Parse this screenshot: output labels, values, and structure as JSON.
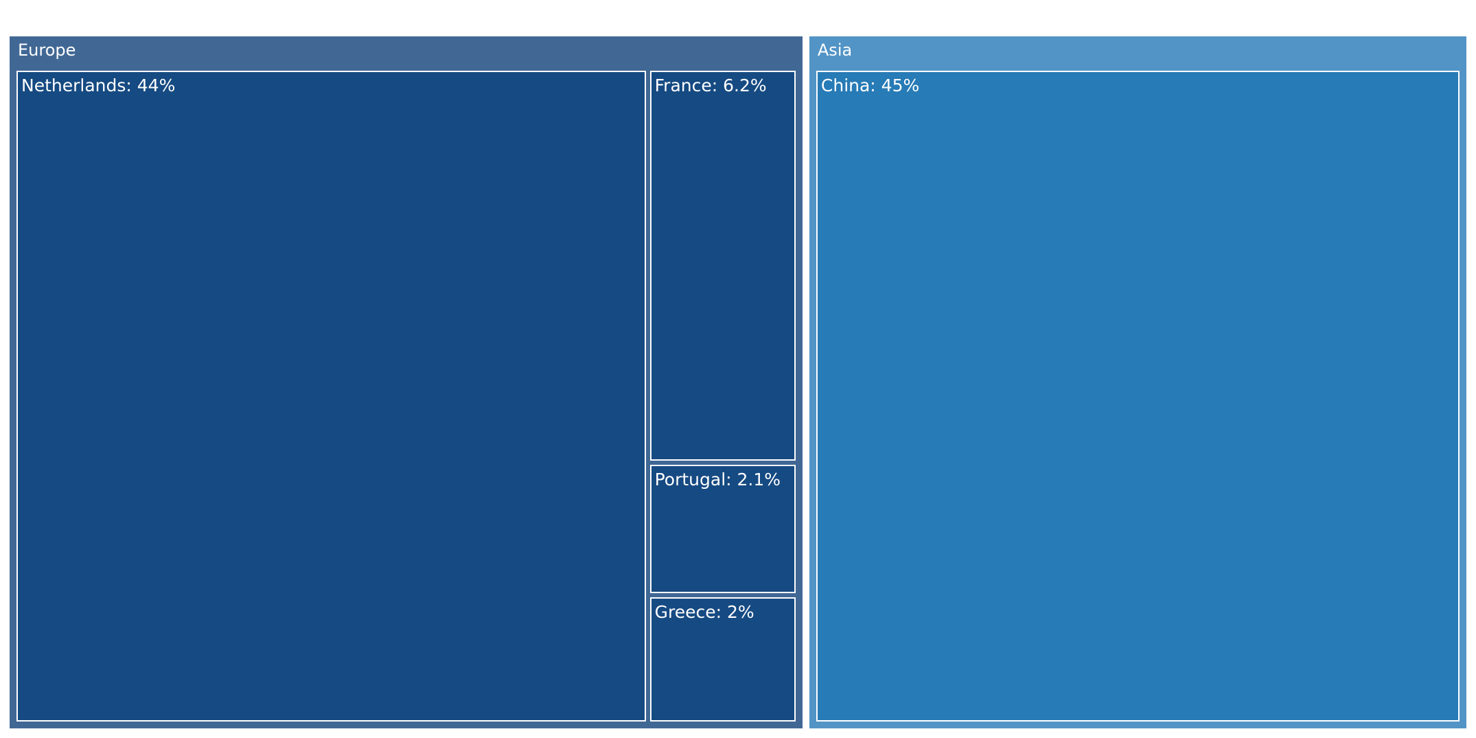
{
  "chart_data": {
    "type": "treemap",
    "groups": [
      {
        "name": "Europe",
        "color": "#416895",
        "leaf_color": "#164a82",
        "items": [
          {
            "name": "Netherlands",
            "label": "Netherlands: 44%",
            "value": 44
          },
          {
            "name": "France",
            "label": "France: 6.2%",
            "value": 6.2
          },
          {
            "name": "Portugal",
            "label": "Portugal: 2.1%",
            "value": 2.1
          },
          {
            "name": "Greece",
            "label": "Greece: 2%",
            "value": 2
          }
        ]
      },
      {
        "name": "Asia",
        "color": "#5294c6",
        "leaf_color": "#277bb6",
        "items": [
          {
            "name": "China",
            "label": "China: 45%",
            "value": 45
          }
        ]
      }
    ]
  }
}
